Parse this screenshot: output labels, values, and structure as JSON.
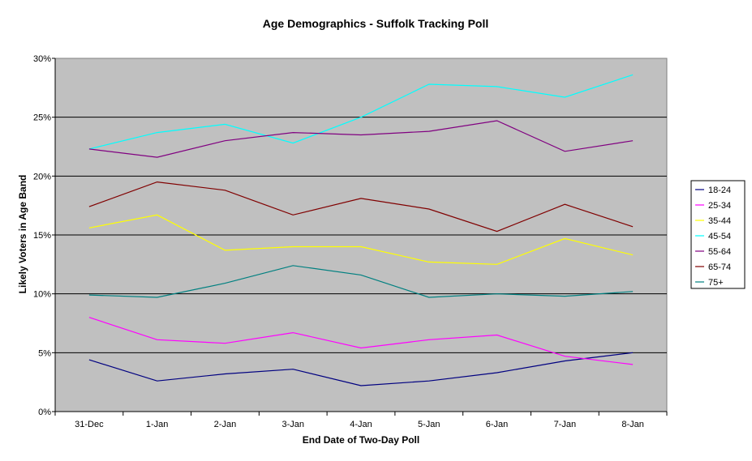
{
  "chart_data": {
    "type": "line",
    "title": "Age Demographics - Suffolk Tracking Poll",
    "xlabel": "End Date of Two-Day Poll",
    "ylabel": "Likely Voters in Age Band",
    "categories": [
      "31-Dec",
      "1-Jan",
      "2-Jan",
      "3-Jan",
      "4-Jan",
      "5-Jan",
      "6-Jan",
      "7-Jan",
      "8-Jan"
    ],
    "ylim": [
      0,
      30
    ],
    "yticks": [
      0,
      5,
      10,
      15,
      20,
      25,
      30
    ],
    "ytick_labels": [
      "0%",
      "5%",
      "10%",
      "15%",
      "20%",
      "25%",
      "30%"
    ],
    "grid": true,
    "legend_position": "right",
    "plot_background": "#c0c0c0",
    "series": [
      {
        "name": "18-24",
        "color": "#000080",
        "values": [
          4.4,
          2.6,
          3.2,
          3.6,
          2.2,
          2.6,
          3.3,
          4.3,
          5.0
        ]
      },
      {
        "name": "25-34",
        "color": "#ff00ff",
        "values": [
          8.0,
          6.1,
          5.8,
          6.7,
          5.4,
          6.1,
          6.5,
          4.7,
          4.0
        ]
      },
      {
        "name": "35-44",
        "color": "#ffff00",
        "values": [
          15.6,
          16.7,
          13.7,
          14.0,
          14.0,
          12.7,
          12.5,
          14.7,
          13.3
        ]
      },
      {
        "name": "45-54",
        "color": "#00ffff",
        "values": [
          22.3,
          23.7,
          24.4,
          22.8,
          25.0,
          27.8,
          27.6,
          26.7,
          28.6
        ]
      },
      {
        "name": "55-64",
        "color": "#800080",
        "values": [
          22.3,
          21.6,
          23.0,
          23.7,
          23.5,
          23.8,
          24.7,
          22.1,
          23.0
        ]
      },
      {
        "name": "65-74",
        "color": "#800000",
        "values": [
          17.4,
          19.5,
          18.8,
          16.7,
          18.1,
          17.2,
          15.3,
          17.6,
          15.7
        ]
      },
      {
        "name": "75+",
        "color": "#008080",
        "values": [
          9.9,
          9.7,
          10.9,
          12.4,
          11.6,
          9.7,
          10.0,
          9.8,
          10.2
        ]
      }
    ]
  }
}
